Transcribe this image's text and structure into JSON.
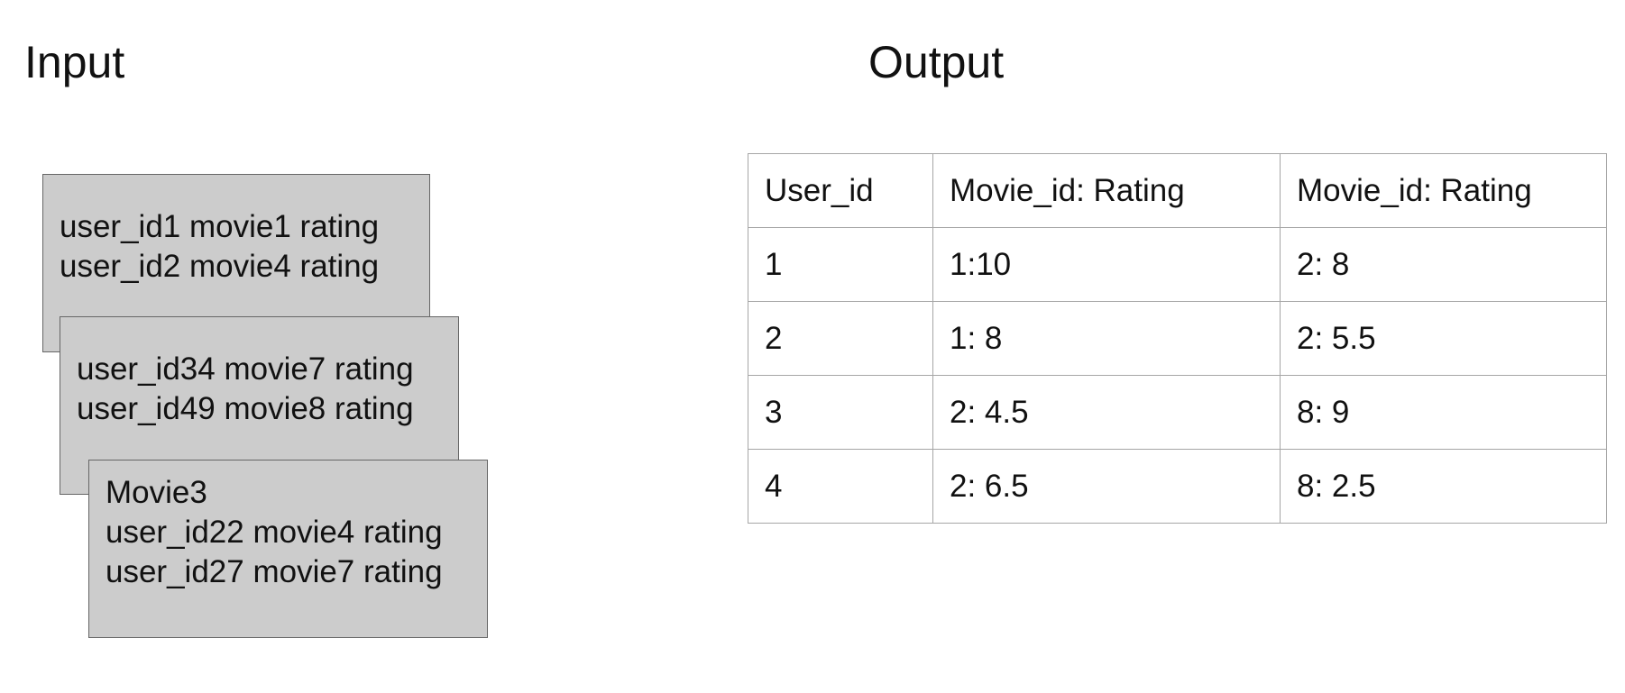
{
  "input": {
    "title": "Input",
    "cards": [
      {
        "lines": [
          "user_id1 movie1 rating",
          "user_id2 movie4 rating"
        ]
      },
      {
        "lines": [
          "user_id34 movie7 rating",
          "user_id49 movie8 rating"
        ]
      },
      {
        "lines": [
          "Movie3",
          "user_id22 movie4 rating",
          "user_id27 movie7 rating"
        ]
      }
    ]
  },
  "output": {
    "title": "Output",
    "table": {
      "headers": [
        "User_id",
        "Movie_id: Rating",
        "Movie_id: Rating"
      ],
      "rows": [
        [
          "1",
          "1:10",
          "2: 8"
        ],
        [
          "2",
          "1: 8",
          "2: 5.5"
        ],
        [
          "3",
          "2: 4.5",
          "8: 9"
        ],
        [
          "4",
          "2: 6.5",
          "8: 2.5"
        ]
      ]
    }
  },
  "colors": {
    "card_fill": "#cccccc",
    "card_border": "#666666",
    "table_border": "#a6a6a6",
    "text": "#111111"
  }
}
